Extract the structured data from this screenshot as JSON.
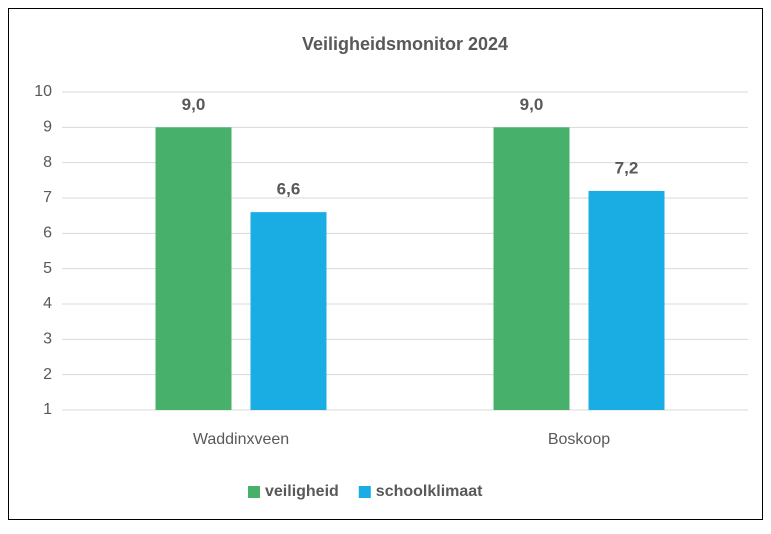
{
  "chart_data": {
    "type": "bar",
    "title": "Veiligheidsmonitor 2024",
    "categories": [
      "Waddinxveen",
      "Boskoop"
    ],
    "series": [
      {
        "name": "veiligheid",
        "color": "#47b06b",
        "values": [
          9.0,
          9.0
        ],
        "value_labels": [
          "9,0",
          "9,0"
        ]
      },
      {
        "name": "schoolklimaat",
        "color": "#1aade4",
        "values": [
          6.6,
          7.2
        ],
        "value_labels": [
          "6,6",
          "7,2"
        ]
      }
    ],
    "ylim": [
      1,
      10
    ],
    "yticks": [
      1,
      2,
      3,
      4,
      5,
      6,
      7,
      8,
      9,
      10
    ],
    "grid": true,
    "legend": "bottom"
  }
}
